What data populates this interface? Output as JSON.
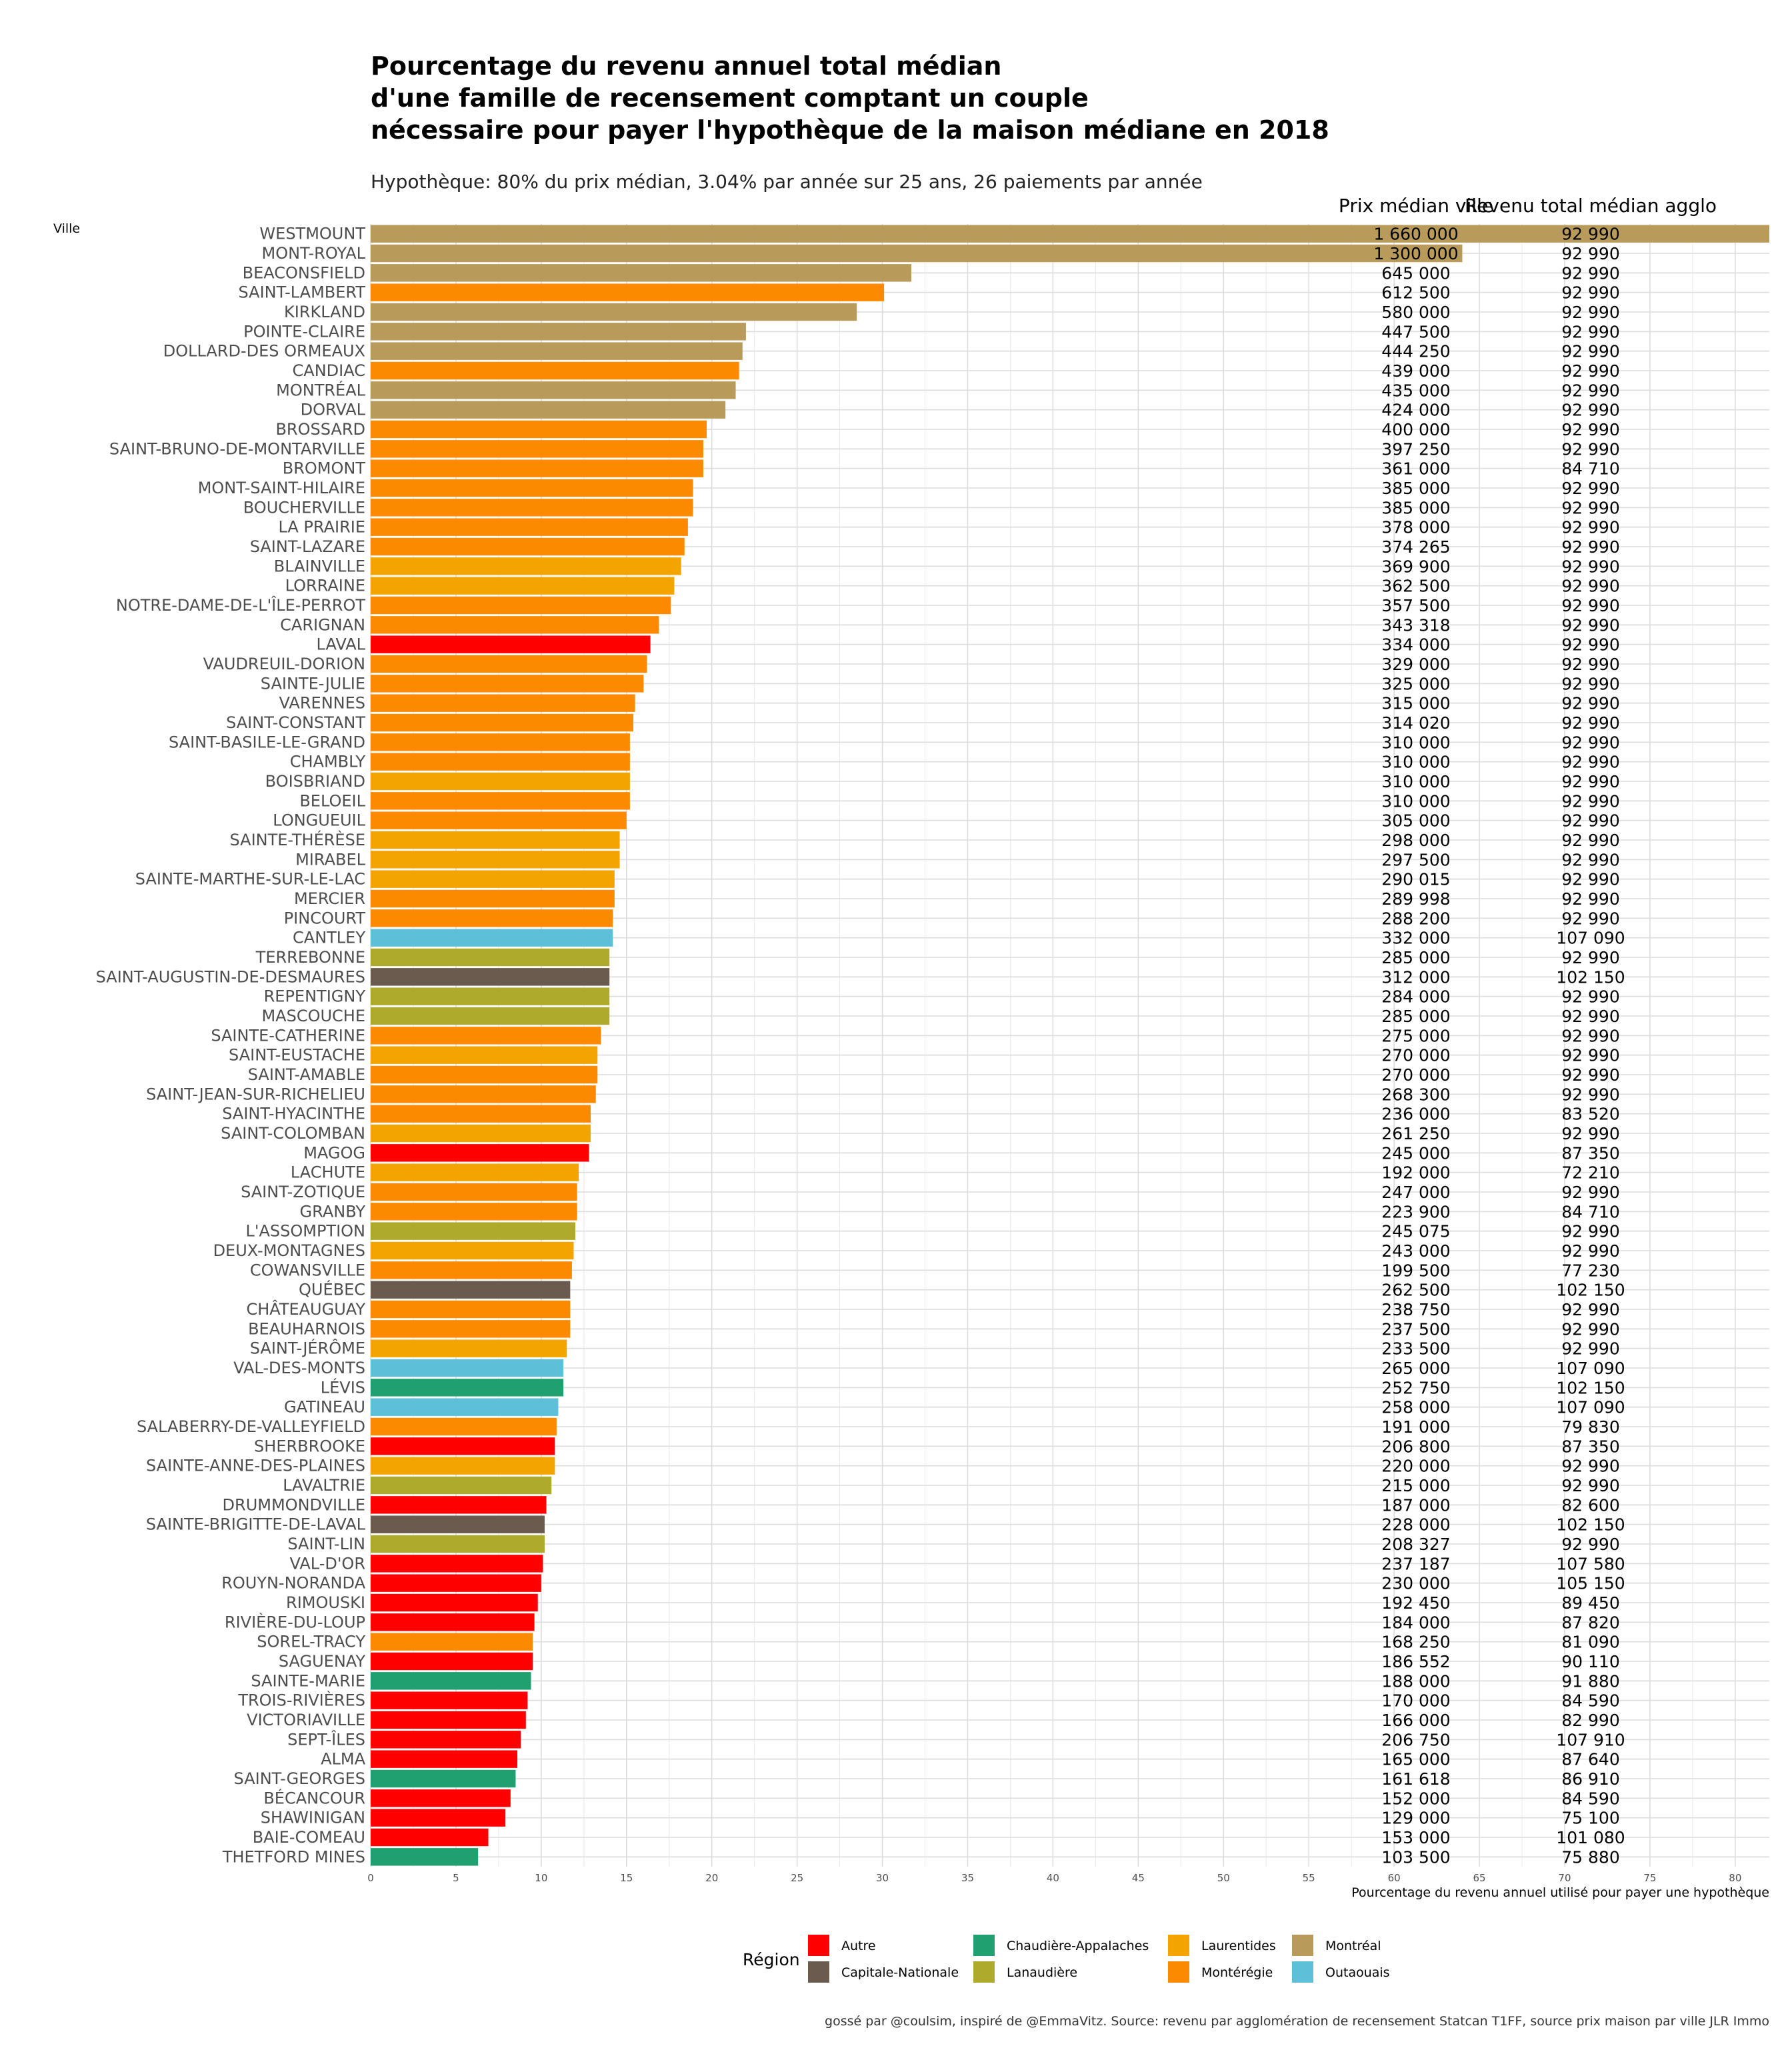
{
  "chart_data": {
    "type": "bar",
    "orientation": "horizontal",
    "title_lines": [
      "Pourcentage du revenu annuel total médian",
      "d'une famille de recensement comptant un couple",
      "nécessaire pour payer l'hypothèque de la maison médiane en 2018"
    ],
    "subtitle": "Hypothèque: 80% du prix médian, 3.04% par année sur 25 ans, 26 paiements par année",
    "ylabel": "Ville",
    "xlabel": "Pourcentage du revenu annuel utilisé pour payer une hypothèque",
    "xlim": [
      0,
      82
    ],
    "x_ticks": [
      "0",
      "5",
      "10",
      "15",
      "20",
      "25",
      "30",
      "35",
      "40",
      "45",
      "50",
      "55",
      "60",
      "65",
      "70",
      "75",
      "80"
    ],
    "column_headers": {
      "price": "Prix médian ville",
      "income": "Revenu total médian agglo"
    },
    "legend": {
      "title": "Région",
      "position": "bottom",
      "items": [
        {
          "name": "Autre",
          "color": "#FF0000"
        },
        {
          "name": "Capitale-Nationale",
          "color": "#6B5B4E"
        },
        {
          "name": "Chaudière-Appalaches",
          "color": "#20A070"
        },
        {
          "name": "Lanaudière",
          "color": "#AEAA2C"
        },
        {
          "name": "Laurentides",
          "color": "#F3A400"
        },
        {
          "name": "Montérégie",
          "color": "#FB8A00"
        },
        {
          "name": "Montréal",
          "color": "#B89A5A"
        },
        {
          "name": "Outaouais",
          "color": "#5EBFD8"
        }
      ]
    },
    "caption": "gossé par @coulsim, inspiré de @EmmaVitz.  Source: revenu par agglomération de recensement Statcan T1FF, source prix maison par ville JLR Immo",
    "rows": [
      {
        "city": "WESTMOUNT",
        "pct": 82.0,
        "price": "1 660 000",
        "income": "92 990",
        "region": "Montréal"
      },
      {
        "city": "MONT-ROYAL",
        "pct": 64.0,
        "price": "1 300 000",
        "income": "92 990",
        "region": "Montréal"
      },
      {
        "city": "BEACONSFIELD",
        "pct": 31.7,
        "price": "645 000",
        "income": "92 990",
        "region": "Montréal"
      },
      {
        "city": "SAINT-LAMBERT",
        "pct": 30.1,
        "price": "612 500",
        "income": "92 990",
        "region": "Montérégie"
      },
      {
        "city": "KIRKLAND",
        "pct": 28.5,
        "price": "580 000",
        "income": "92 990",
        "region": "Montréal"
      },
      {
        "city": "POINTE-CLAIRE",
        "pct": 22.0,
        "price": "447 500",
        "income": "92 990",
        "region": "Montréal"
      },
      {
        "city": "DOLLARD-DES ORMEAUX",
        "pct": 21.8,
        "price": "444 250",
        "income": "92 990",
        "region": "Montréal"
      },
      {
        "city": "CANDIAC",
        "pct": 21.6,
        "price": "439 000",
        "income": "92 990",
        "region": "Montérégie"
      },
      {
        "city": "MONTRÉAL",
        "pct": 21.4,
        "price": "435 000",
        "income": "92 990",
        "region": "Montréal"
      },
      {
        "city": "DORVAL",
        "pct": 20.8,
        "price": "424 000",
        "income": "92 990",
        "region": "Montréal"
      },
      {
        "city": "BROSSARD",
        "pct": 19.7,
        "price": "400 000",
        "income": "92 990",
        "region": "Montérégie"
      },
      {
        "city": "SAINT-BRUNO-DE-MONTARVILLE",
        "pct": 19.5,
        "price": "397 250",
        "income": "92 990",
        "region": "Montérégie"
      },
      {
        "city": "BROMONT",
        "pct": 19.5,
        "price": "361 000",
        "income": "84 710",
        "region": "Montérégie"
      },
      {
        "city": "MONT-SAINT-HILAIRE",
        "pct": 18.9,
        "price": "385 000",
        "income": "92 990",
        "region": "Montérégie"
      },
      {
        "city": "BOUCHERVILLE",
        "pct": 18.9,
        "price": "385 000",
        "income": "92 990",
        "region": "Montérégie"
      },
      {
        "city": "LA PRAIRIE",
        "pct": 18.6,
        "price": "378 000",
        "income": "92 990",
        "region": "Montérégie"
      },
      {
        "city": "SAINT-LAZARE",
        "pct": 18.4,
        "price": "374 265",
        "income": "92 990",
        "region": "Montérégie"
      },
      {
        "city": "BLAINVILLE",
        "pct": 18.2,
        "price": "369 900",
        "income": "92 990",
        "region": "Laurentides"
      },
      {
        "city": "LORRAINE",
        "pct": 17.8,
        "price": "362 500",
        "income": "92 990",
        "region": "Laurentides"
      },
      {
        "city": "NOTRE-DAME-DE-L'ÎLE-PERROT",
        "pct": 17.6,
        "price": "357 500",
        "income": "92 990",
        "region": "Montérégie"
      },
      {
        "city": "CARIGNAN",
        "pct": 16.9,
        "price": "343 318",
        "income": "92 990",
        "region": "Montérégie"
      },
      {
        "city": "LAVAL",
        "pct": 16.4,
        "price": "334 000",
        "income": "92 990",
        "region": "Autre"
      },
      {
        "city": "VAUDREUIL-DORION",
        "pct": 16.2,
        "price": "329 000",
        "income": "92 990",
        "region": "Montérégie"
      },
      {
        "city": "SAINTE-JULIE",
        "pct": 16.0,
        "price": "325 000",
        "income": "92 990",
        "region": "Montérégie"
      },
      {
        "city": "VARENNES",
        "pct": 15.5,
        "price": "315 000",
        "income": "92 990",
        "region": "Montérégie"
      },
      {
        "city": "SAINT-CONSTANT",
        "pct": 15.4,
        "price": "314 020",
        "income": "92 990",
        "region": "Montérégie"
      },
      {
        "city": "SAINT-BASILE-LE-GRAND",
        "pct": 15.2,
        "price": "310 000",
        "income": "92 990",
        "region": "Montérégie"
      },
      {
        "city": "CHAMBLY",
        "pct": 15.2,
        "price": "310 000",
        "income": "92 990",
        "region": "Montérégie"
      },
      {
        "city": "BOISBRIAND",
        "pct": 15.2,
        "price": "310 000",
        "income": "92 990",
        "region": "Laurentides"
      },
      {
        "city": "BELOEIL",
        "pct": 15.2,
        "price": "310 000",
        "income": "92 990",
        "region": "Montérégie"
      },
      {
        "city": "LONGUEUIL",
        "pct": 15.0,
        "price": "305 000",
        "income": "92 990",
        "region": "Montérégie"
      },
      {
        "city": "SAINTE-THÉRÈSE",
        "pct": 14.6,
        "price": "298 000",
        "income": "92 990",
        "region": "Laurentides"
      },
      {
        "city": "MIRABEL",
        "pct": 14.6,
        "price": "297 500",
        "income": "92 990",
        "region": "Laurentides"
      },
      {
        "city": "SAINTE-MARTHE-SUR-LE-LAC",
        "pct": 14.3,
        "price": "290 015",
        "income": "92 990",
        "region": "Laurentides"
      },
      {
        "city": "MERCIER",
        "pct": 14.3,
        "price": "289 998",
        "income": "92 990",
        "region": "Montérégie"
      },
      {
        "city": "PINCOURT",
        "pct": 14.2,
        "price": "288 200",
        "income": "92 990",
        "region": "Montérégie"
      },
      {
        "city": "CANTLEY",
        "pct": 14.2,
        "price": "332 000",
        "income": "107 090",
        "region": "Outaouais"
      },
      {
        "city": "TERREBONNE",
        "pct": 14.0,
        "price": "285 000",
        "income": "92 990",
        "region": "Lanaudière"
      },
      {
        "city": "SAINT-AUGUSTIN-DE-DESMAURES",
        "pct": 14.0,
        "price": "312 000",
        "income": "102 150",
        "region": "Capitale-Nationale"
      },
      {
        "city": "REPENTIGNY",
        "pct": 14.0,
        "price": "284 000",
        "income": "92 990",
        "region": "Lanaudière"
      },
      {
        "city": "MASCOUCHE",
        "pct": 14.0,
        "price": "285 000",
        "income": "92 990",
        "region": "Lanaudière"
      },
      {
        "city": "SAINTE-CATHERINE",
        "pct": 13.5,
        "price": "275 000",
        "income": "92 990",
        "region": "Montérégie"
      },
      {
        "city": "SAINT-EUSTACHE",
        "pct": 13.3,
        "price": "270 000",
        "income": "92 990",
        "region": "Laurentides"
      },
      {
        "city": "SAINT-AMABLE",
        "pct": 13.3,
        "price": "270 000",
        "income": "92 990",
        "region": "Montérégie"
      },
      {
        "city": "SAINT-JEAN-SUR-RICHELIEU",
        "pct": 13.2,
        "price": "268 300",
        "income": "92 990",
        "region": "Montérégie"
      },
      {
        "city": "SAINT-HYACINTHE",
        "pct": 12.9,
        "price": "236 000",
        "income": "83 520",
        "region": "Montérégie"
      },
      {
        "city": "SAINT-COLOMBAN",
        "pct": 12.9,
        "price": "261 250",
        "income": "92 990",
        "region": "Laurentides"
      },
      {
        "city": "MAGOG",
        "pct": 12.8,
        "price": "245 000",
        "income": "87 350",
        "region": "Autre"
      },
      {
        "city": "LACHUTE",
        "pct": 12.2,
        "price": "192 000",
        "income": "72 210",
        "region": "Laurentides"
      },
      {
        "city": "SAINT-ZOTIQUE",
        "pct": 12.1,
        "price": "247 000",
        "income": "92 990",
        "region": "Montérégie"
      },
      {
        "city": "GRANBY",
        "pct": 12.1,
        "price": "223 900",
        "income": "84 710",
        "region": "Montérégie"
      },
      {
        "city": "L'ASSOMPTION",
        "pct": 12.0,
        "price": "245 075",
        "income": "92 990",
        "region": "Lanaudière"
      },
      {
        "city": "DEUX-MONTAGNES",
        "pct": 11.9,
        "price": "243 000",
        "income": "92 990",
        "region": "Laurentides"
      },
      {
        "city": "COWANSVILLE",
        "pct": 11.8,
        "price": "199 500",
        "income": "77 230",
        "region": "Montérégie"
      },
      {
        "city": "QUÉBEC",
        "pct": 11.7,
        "price": "262 500",
        "income": "102 150",
        "region": "Capitale-Nationale"
      },
      {
        "city": "CHÂTEAUGUAY",
        "pct": 11.7,
        "price": "238 750",
        "income": "92 990",
        "region": "Montérégie"
      },
      {
        "city": "BEAUHARNOIS",
        "pct": 11.7,
        "price": "237 500",
        "income": "92 990",
        "region": "Montérégie"
      },
      {
        "city": "SAINT-JÉRÔME",
        "pct": 11.5,
        "price": "233 500",
        "income": "92 990",
        "region": "Laurentides"
      },
      {
        "city": "VAL-DES-MONTS",
        "pct": 11.3,
        "price": "265 000",
        "income": "107 090",
        "region": "Outaouais"
      },
      {
        "city": "LÉVIS",
        "pct": 11.3,
        "price": "252 750",
        "income": "102 150",
        "region": "Chaudière-Appalaches"
      },
      {
        "city": "GATINEAU",
        "pct": 11.0,
        "price": "258 000",
        "income": "107 090",
        "region": "Outaouais"
      },
      {
        "city": "SALABERRY-DE-VALLEYFIELD",
        "pct": 10.9,
        "price": "191 000",
        "income": "79 830",
        "region": "Montérégie"
      },
      {
        "city": "SHERBROOKE",
        "pct": 10.8,
        "price": "206 800",
        "income": "87 350",
        "region": "Autre"
      },
      {
        "city": "SAINTE-ANNE-DES-PLAINES",
        "pct": 10.8,
        "price": "220 000",
        "income": "92 990",
        "region": "Laurentides"
      },
      {
        "city": "LAVALTRIE",
        "pct": 10.6,
        "price": "215 000",
        "income": "92 990",
        "region": "Lanaudière"
      },
      {
        "city": "DRUMMONDVILLE",
        "pct": 10.3,
        "price": "187 000",
        "income": "82 600",
        "region": "Autre"
      },
      {
        "city": "SAINTE-BRIGITTE-DE-LAVAL",
        "pct": 10.2,
        "price": "228 000",
        "income": "102 150",
        "region": "Capitale-Nationale"
      },
      {
        "city": "SAINT-LIN",
        "pct": 10.2,
        "price": "208 327",
        "income": "92 990",
        "region": "Lanaudière"
      },
      {
        "city": "VAL-D'OR",
        "pct": 10.1,
        "price": "237 187",
        "income": "107 580",
        "region": "Autre"
      },
      {
        "city": "ROUYN-NORANDA",
        "pct": 10.0,
        "price": "230 000",
        "income": "105 150",
        "region": "Autre"
      },
      {
        "city": "RIMOUSKI",
        "pct": 9.8,
        "price": "192 450",
        "income": "89 450",
        "region": "Autre"
      },
      {
        "city": "RIVIÈRE-DU-LOUP",
        "pct": 9.6,
        "price": "184 000",
        "income": "87 820",
        "region": "Autre"
      },
      {
        "city": "SOREL-TRACY",
        "pct": 9.5,
        "price": "168 250",
        "income": "81 090",
        "region": "Montérégie"
      },
      {
        "city": "SAGUENAY",
        "pct": 9.5,
        "price": "186 552",
        "income": "90 110",
        "region": "Autre"
      },
      {
        "city": "SAINTE-MARIE",
        "pct": 9.4,
        "price": "188 000",
        "income": "91 880",
        "region": "Chaudière-Appalaches"
      },
      {
        "city": "TROIS-RIVIÈRES",
        "pct": 9.2,
        "price": "170 000",
        "income": "84 590",
        "region": "Autre"
      },
      {
        "city": "VICTORIAVILLE",
        "pct": 9.1,
        "price": "166 000",
        "income": "82 990",
        "region": "Autre"
      },
      {
        "city": "SEPT-ÎLES",
        "pct": 8.8,
        "price": "206 750",
        "income": "107 910",
        "region": "Autre"
      },
      {
        "city": "ALMA",
        "pct": 8.6,
        "price": "165 000",
        "income": "87 640",
        "region": "Autre"
      },
      {
        "city": "SAINT-GEORGES",
        "pct": 8.5,
        "price": "161 618",
        "income": "86 910",
        "region": "Chaudière-Appalaches"
      },
      {
        "city": "BÉCANCOUR",
        "pct": 8.2,
        "price": "152 000",
        "income": "84 590",
        "region": "Autre"
      },
      {
        "city": "SHAWINIGAN",
        "pct": 7.9,
        "price": "129 000",
        "income": "75 100",
        "region": "Autre"
      },
      {
        "city": "BAIE-COMEAU",
        "pct": 6.9,
        "price": "153 000",
        "income": "101 080",
        "region": "Autre"
      },
      {
        "city": "THETFORD MINES",
        "pct": 6.3,
        "price": "103 500",
        "income": "75 880",
        "region": "Chaudière-Appalaches"
      }
    ]
  }
}
